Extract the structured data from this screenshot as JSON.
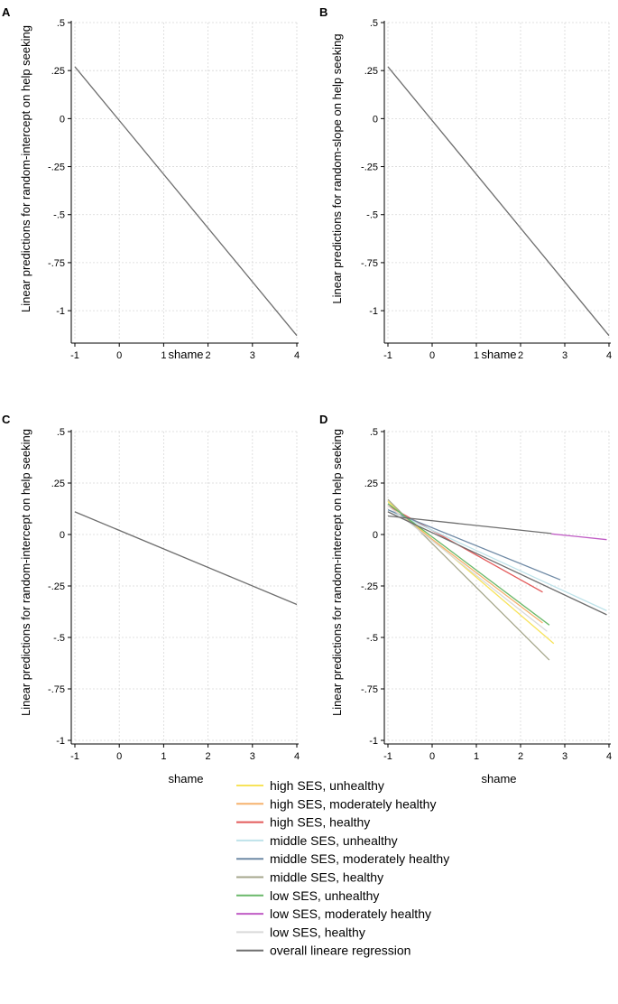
{
  "legend": {
    "items": [
      {
        "label": "high SES, unhealthy",
        "color": "#f7e35a"
      },
      {
        "label": "high SES, moderately healthy",
        "color": "#f5b26e"
      },
      {
        "label": "high SES, healthy",
        "color": "#e35a5a"
      },
      {
        "label": "middle SES, unhealthy",
        "color": "#bfe3ea"
      },
      {
        "label": "middle SES, moderately healthy",
        "color": "#6f8aa5"
      },
      {
        "label": "middle SES, healthy",
        "color": "#a6a78c"
      },
      {
        "label": "low SES, unhealthy",
        "color": "#6ab86a"
      },
      {
        "label": "low SES, moderately healthy",
        "color": "#c05cc5"
      },
      {
        "label": "low SES, healthy",
        "color": "#d9d9d9"
      },
      {
        "label": "overall lineare regression",
        "color": "#6e6e6e"
      }
    ]
  },
  "chart_data": [
    {
      "panel": "A",
      "type": "line",
      "xlabel": "shame",
      "ylabel": "Linear predictions for random-intercept on help seeking",
      "xlim": [
        -1,
        4
      ],
      "ylim": [
        -1.15,
        0.5
      ],
      "xticks": [
        -1,
        0,
        1,
        2,
        3,
        4
      ],
      "xtick_labels": [
        "-1",
        "0",
        "1",
        "2",
        "3",
        "4"
      ],
      "yticks": [
        0.5,
        0.25,
        0,
        -0.25,
        -0.5,
        -0.75,
        -1
      ],
      "ytick_labels": [
        ".5",
        ".25",
        "0",
        "-.25",
        "-.5",
        "-.75",
        "-1"
      ],
      "grid": true,
      "series": [
        {
          "color": "#6e6e6e",
          "x": [
            -1,
            4
          ],
          "y": [
            0.27,
            -1.13
          ]
        }
      ]
    },
    {
      "panel": "B",
      "type": "line",
      "xlabel": "shame",
      "ylabel": "Linear predictions for random-slope on help seeking",
      "xlim": [
        -1,
        4
      ],
      "ylim": [
        -1.15,
        0.5
      ],
      "xticks": [
        -1,
        0,
        1,
        2,
        3,
        4
      ],
      "xtick_labels": [
        "-1",
        "0",
        "1",
        "2",
        "3",
        "4"
      ],
      "yticks": [
        0.5,
        0.25,
        0,
        -0.25,
        -0.5,
        -0.75,
        -1
      ],
      "ytick_labels": [
        ".5",
        ".25",
        "0",
        "-.25",
        "-.5",
        "-.75",
        "-1"
      ],
      "grid": true,
      "series": [
        {
          "color": "#6e6e6e",
          "x": [
            -1,
            4
          ],
          "y": [
            0.27,
            -1.13
          ]
        }
      ]
    },
    {
      "panel": "C",
      "type": "line",
      "xlabel": "shame",
      "ylabel": "Linear predictions for random-intercept on help seeking",
      "xlim": [
        -1,
        4
      ],
      "ylim": [
        -1,
        0.5
      ],
      "xticks": [
        -1,
        0,
        1,
        2,
        3,
        4
      ],
      "xtick_labels": [
        "-1",
        "0",
        "1",
        "2",
        "3",
        "4"
      ],
      "yticks": [
        0.5,
        0.25,
        0,
        -0.25,
        -0.5,
        -0.75,
        -1
      ],
      "ytick_labels": [
        ".5",
        ".25",
        "0",
        "-.25",
        "-.5",
        "-.75",
        "-1"
      ],
      "grid": true,
      "series": [
        {
          "color": "#6e6e6e",
          "x": [
            -1,
            4
          ],
          "y": [
            0.11,
            -0.34
          ]
        }
      ]
    },
    {
      "panel": "D",
      "type": "line",
      "xlabel": "shame",
      "ylabel": "Linear predictions for random-intercept on help seeking",
      "xlim": [
        -1,
        4
      ],
      "ylim": [
        -1,
        0.5
      ],
      "xticks": [
        -1,
        0,
        1,
        2,
        3,
        4
      ],
      "xtick_labels": [
        "-1",
        "0",
        "1",
        "2",
        "3",
        "4"
      ],
      "yticks": [
        0.5,
        0.25,
        0,
        -0.25,
        -0.5,
        -0.75,
        -1
      ],
      "ytick_labels": [
        ".5",
        ".25",
        "0",
        "-.25",
        "-.5",
        "-.75",
        "-1"
      ],
      "grid": true,
      "series": [
        {
          "name": "high SES, unhealthy",
          "color": "#f7e35a",
          "x": [
            -1,
            2.75
          ],
          "y": [
            0.16,
            -0.53
          ]
        },
        {
          "name": "high SES, moderately healthy",
          "color": "#f5b26e",
          "x": [
            -1,
            2.5
          ],
          "y": [
            0.14,
            -0.43
          ]
        },
        {
          "name": "high SES, healthy",
          "color": "#e35a5a",
          "x": [
            -1,
            2.5
          ],
          "y": [
            0.14,
            -0.28
          ]
        },
        {
          "name": "middle SES, unhealthy",
          "color": "#bfe3ea",
          "x": [
            -1,
            3.95
          ],
          "y": [
            0.12,
            -0.37
          ]
        },
        {
          "name": "middle SES, moderately healthy",
          "color": "#6f8aa5",
          "x": [
            -1,
            2.9
          ],
          "y": [
            0.12,
            -0.22
          ]
        },
        {
          "name": "middle SES, healthy",
          "color": "#a6a78c",
          "x": [
            -1,
            2.65
          ],
          "y": [
            0.17,
            -0.61
          ]
        },
        {
          "name": "low SES, unhealthy",
          "color": "#6ab86a",
          "x": [
            -1,
            2.65
          ],
          "y": [
            0.15,
            -0.44
          ]
        },
        {
          "name": "low SES, moderately healthy",
          "color": "#c05cc5",
          "x": [
            2.7,
            3.95
          ],
          "y": [
            0.003,
            -0.025
          ]
        },
        {
          "name": "low SES, healthy",
          "color": "#d9d9d9",
          "x": [
            -1,
            2.6
          ],
          "y": [
            0.14,
            -0.47
          ]
        },
        {
          "name": "overall lineare regression",
          "color": "#6e6e6e",
          "x": [
            -1,
            3.95
          ],
          "y": [
            0.11,
            -0.39
          ]
        },
        {
          "color": "#6e6e6e",
          "x": [
            -1,
            2.7
          ],
          "y": [
            0.09,
            0.005
          ]
        }
      ]
    }
  ]
}
